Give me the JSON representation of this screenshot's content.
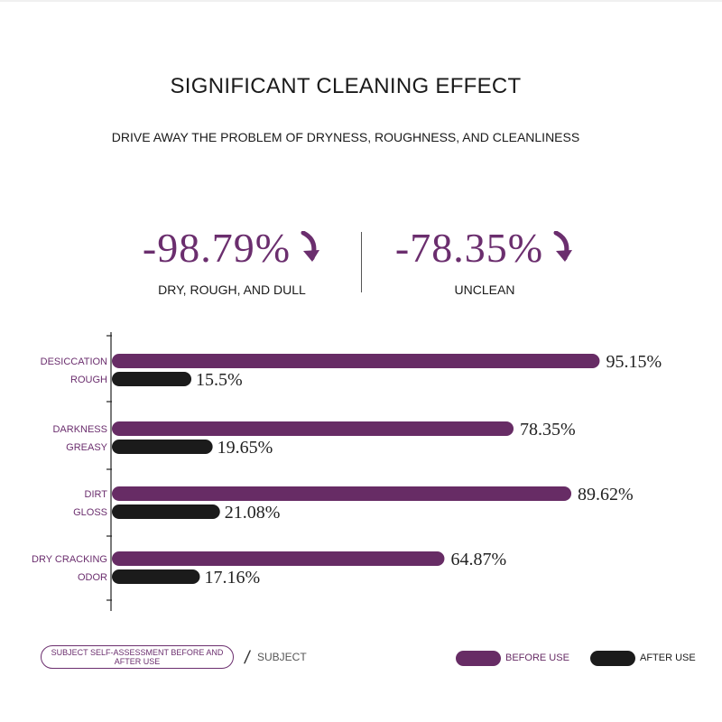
{
  "header": {
    "title": "SIGNIFICANT CLEANING EFFECT",
    "subtitle": "DRIVE AWAY THE PROBLEM OF DRYNESS, ROUGHNESS, AND CLEANLINESS"
  },
  "stats": [
    {
      "value": "-98.79%",
      "label": "DRY, ROUGH, AND DULL"
    },
    {
      "value": "-78.35%",
      "label": "UNCLEAN"
    }
  ],
  "colors": {
    "before": "#672c65",
    "after": "#1b1b1b",
    "accent": "#6b2e6e"
  },
  "chart_data": {
    "type": "bar",
    "orientation": "horizontal",
    "groups": [
      {
        "labels": [
          "DESICCATION",
          "ROUGH"
        ],
        "before": 95.15,
        "after": 15.5,
        "before_label": "95.15%",
        "after_label": "15.5%"
      },
      {
        "labels": [
          "DARKNESS",
          "GREASY"
        ],
        "before": 78.35,
        "after": 19.65,
        "before_label": "78.35%",
        "after_label": "19.65%"
      },
      {
        "labels": [
          "DIRT",
          "GLOSS"
        ],
        "before": 89.62,
        "after": 21.08,
        "before_label": "89.62%",
        "after_label": "21.08%"
      },
      {
        "labels": [
          "DRY CRACKING",
          "ODOR"
        ],
        "before": 64.87,
        "after": 17.16,
        "before_label": "64.87%",
        "after_label": "17.16%"
      }
    ],
    "series": [
      {
        "name": "BEFORE USE",
        "values": [
          95.15,
          78.35,
          89.62,
          64.87
        ]
      },
      {
        "name": "AFTER USE",
        "values": [
          15.5,
          19.65,
          21.08,
          17.16
        ]
      }
    ],
    "xlim": [
      0,
      100
    ],
    "legend": "bottom-right"
  },
  "legend": {
    "pill_text": "SUBJECT SELF-ASSESSMENT BEFORE AND AFTER USE",
    "subject": "SUBJECT",
    "before": "BEFORE USE",
    "after": "AFTER USE"
  }
}
